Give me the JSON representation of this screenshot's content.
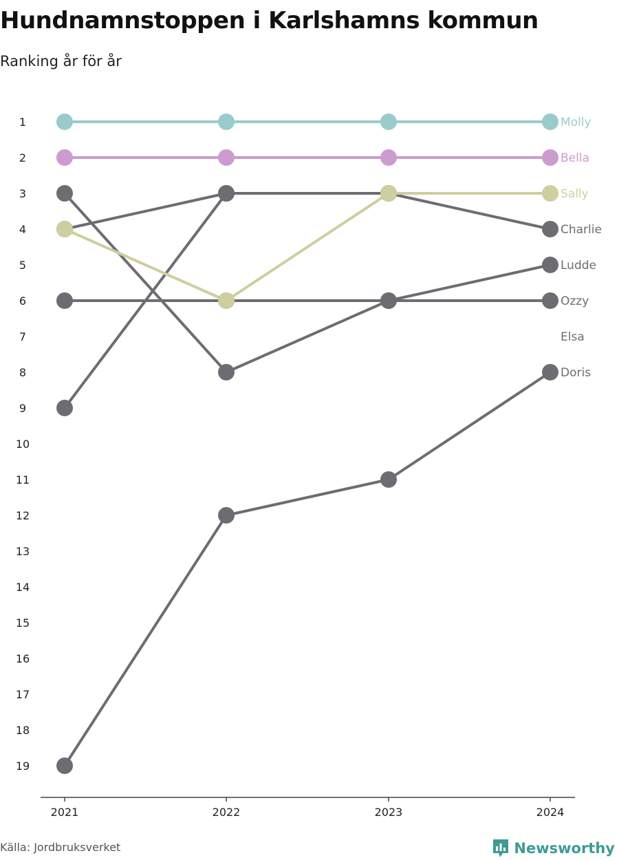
{
  "chart_data": {
    "type": "line",
    "title": "Hundnamnstoppen i Karlshamns kommun",
    "subtitle": "Ranking år för år",
    "x": [
      "2021",
      "2022",
      "2023",
      "2024"
    ],
    "y_ticks": [
      "1",
      "2",
      "3",
      "4",
      "5",
      "6",
      "7",
      "8",
      "9",
      "10",
      "11",
      "12",
      "13",
      "14",
      "15",
      "16",
      "17",
      "18",
      "19"
    ],
    "ylim": [
      1,
      19
    ],
    "y_reversed": true,
    "grid": false,
    "series": [
      {
        "name": "Ozzy",
        "values": [
          6,
          6,
          6,
          6
        ],
        "color": "#6d6c72"
      },
      {
        "name": "Charlie",
        "values": [
          4,
          3,
          3,
          4
        ],
        "color": "#6d6c72"
      },
      {
        "name": "Ludde",
        "values": [
          3,
          8,
          6,
          5
        ],
        "color": "#6d6c72"
      },
      {
        "name": "Elsa",
        "values": [
          9,
          3,
          3,
          null
        ],
        "color": "#6d6c72"
      },
      {
        "name": "Doris",
        "values": [
          19,
          12,
          11,
          8
        ],
        "color": "#6d6c72"
      },
      {
        "name": "Sally",
        "values": [
          4,
          6,
          3,
          3
        ],
        "color": "#cfce9e"
      },
      {
        "name": "Bella",
        "values": [
          2,
          2,
          2,
          2
        ],
        "color": "#cc9bcf"
      },
      {
        "name": "Molly",
        "values": [
          1,
          1,
          1,
          1
        ],
        "color": "#9acbcb"
      }
    ],
    "source": "Källa: Jordbruksverket"
  },
  "brand": {
    "name": "Newsworthy",
    "icon": "newsworthy-logo-icon",
    "color": "#3f9a93"
  }
}
